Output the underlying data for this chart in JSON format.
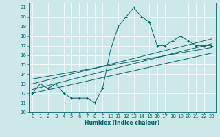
{
  "xlabel": "Humidex (Indice chaleur)",
  "bg_color": "#cce8e8",
  "line_color": "#006666",
  "xlim": [
    -0.5,
    23.5
  ],
  "ylim": [
    10,
    21.5
  ],
  "yticks": [
    10,
    11,
    12,
    13,
    14,
    15,
    16,
    17,
    18,
    19,
    20,
    21
  ],
  "xticks": [
    0,
    1,
    2,
    3,
    4,
    5,
    6,
    7,
    8,
    9,
    10,
    11,
    12,
    13,
    14,
    15,
    16,
    17,
    18,
    19,
    20,
    21,
    22,
    23
  ],
  "scatter_x": [
    0,
    1,
    2,
    3,
    4,
    5,
    6,
    7,
    8,
    9,
    10,
    11,
    12,
    13,
    14,
    15,
    16,
    17,
    18,
    19,
    20,
    21,
    22,
    23
  ],
  "scatter_y": [
    12,
    13,
    12.5,
    13,
    12,
    11.5,
    11.5,
    11.5,
    11,
    12.5,
    16.5,
    19,
    20,
    21,
    20,
    19.5,
    17,
    17,
    17.5,
    18,
    17.5,
    17,
    17,
    17
  ],
  "trend_lines": [
    [
      [
        0,
        23
      ],
      [
        12.0,
        16.2
      ]
    ],
    [
      [
        0,
        23
      ],
      [
        12.4,
        17.2
      ]
    ],
    [
      [
        0,
        23
      ],
      [
        13.0,
        17.7
      ]
    ],
    [
      [
        0,
        23
      ],
      [
        13.5,
        16.8
      ]
    ]
  ]
}
